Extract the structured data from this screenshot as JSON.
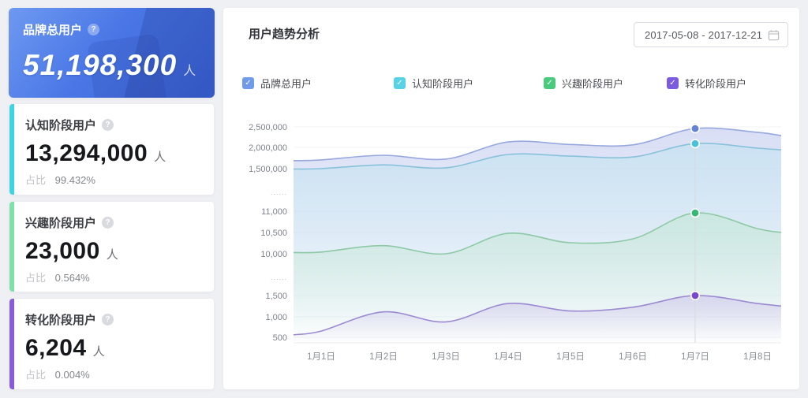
{
  "summary_cards": [
    {
      "title": "品牌总用户",
      "help_icon": "?",
      "value": "51,198,300",
      "unit": "人"
    },
    {
      "title": "认知阶段用户",
      "help_icon": "?",
      "value": "13,294,000",
      "unit": "人",
      "ratio_label": "占比",
      "ratio": "99.432%",
      "accent": "#3ed4e2"
    },
    {
      "title": "兴趣阶段用户",
      "help_icon": "?",
      "value": "23,000",
      "unit": "人",
      "ratio_label": "占比",
      "ratio": "0.564%",
      "accent": "#7fe0aa"
    },
    {
      "title": "转化阶段用户",
      "help_icon": "?",
      "value": "6,204",
      "unit": "人",
      "ratio_label": "占比",
      "ratio": "0.004%",
      "accent": "#8a5dd8"
    }
  ],
  "panel": {
    "title": "用户趋势分析",
    "date_range": "2017-05-08 - 2017-12-21",
    "legend": [
      {
        "label": "品牌总用户",
        "color": "#6f9bea",
        "checked": true,
        "check_glyph": "✓"
      },
      {
        "label": "认知阶段用户",
        "color": "#57d2e6",
        "checked": true,
        "check_glyph": "✓"
      },
      {
        "label": "兴趣阶段用户",
        "color": "#49cb7d",
        "checked": true,
        "check_glyph": "✓"
      },
      {
        "label": "转化阶段用户",
        "color": "#7d5be0",
        "checked": true,
        "check_glyph": "✓"
      }
    ]
  },
  "chart_data": {
    "type": "area",
    "title": "用户趋势分析",
    "x_labels": [
      "1月1日",
      "1月2日",
      "1月3日",
      "1月4日",
      "1月5日",
      "1月6日",
      "1月7日",
      "1月8日"
    ],
    "y_tick_labels": [
      "2,500,000",
      "2,000,000",
      "1,500,000",
      "......",
      "11,000",
      "10,500",
      "10,000",
      "......",
      "1,500",
      "1,000",
      "500"
    ],
    "axis_break": true,
    "grid": true,
    "legend_position": "top",
    "highlight_x_index": 6,
    "segments": [
      {
        "range": [
          1500000,
          2500000
        ]
      },
      {
        "range": [
          10000,
          11000
        ]
      },
      {
        "range": [
          500,
          1500
        ]
      }
    ],
    "series": [
      {
        "name": "品牌总用户",
        "segment": 0,
        "line_color": "#96a8de",
        "dot_color": "#6583d6",
        "fill_color": "#b9c3ec",
        "values": [
          1710000,
          1820000,
          1730000,
          2140000,
          2080000,
          2070000,
          2460000,
          2370000
        ],
        "edge_left": 1690000,
        "edge_right": 2290000
      },
      {
        "name": "认知阶段用户",
        "segment": 0,
        "line_color": "#87c2da",
        "dot_color": "#49c0dc",
        "fill_color": "#bfe4f0",
        "values": [
          1500000,
          1590000,
          1520000,
          1840000,
          1800000,
          1780000,
          2100000,
          1990000
        ],
        "edge_left": 1490000,
        "edge_right": 1950000
      },
      {
        "name": "兴趣阶段用户",
        "segment": 1,
        "line_color": "#8cc9a4",
        "dot_color": "#35b873",
        "fill_color": "#bfe6cf",
        "values": [
          10040,
          10190,
          10000,
          10480,
          10260,
          10350,
          10960,
          10590
        ],
        "edge_left": 10030,
        "edge_right": 10500
      },
      {
        "name": "转化阶段用户",
        "segment": 2,
        "line_color": "#9b8ad2",
        "dot_color": "#7848d0",
        "fill_color": "#c9bfe8",
        "values": [
          650,
          1110,
          870,
          1310,
          1130,
          1220,
          1500,
          1310
        ],
        "edge_left": 560,
        "edge_right": 1250
      }
    ]
  }
}
